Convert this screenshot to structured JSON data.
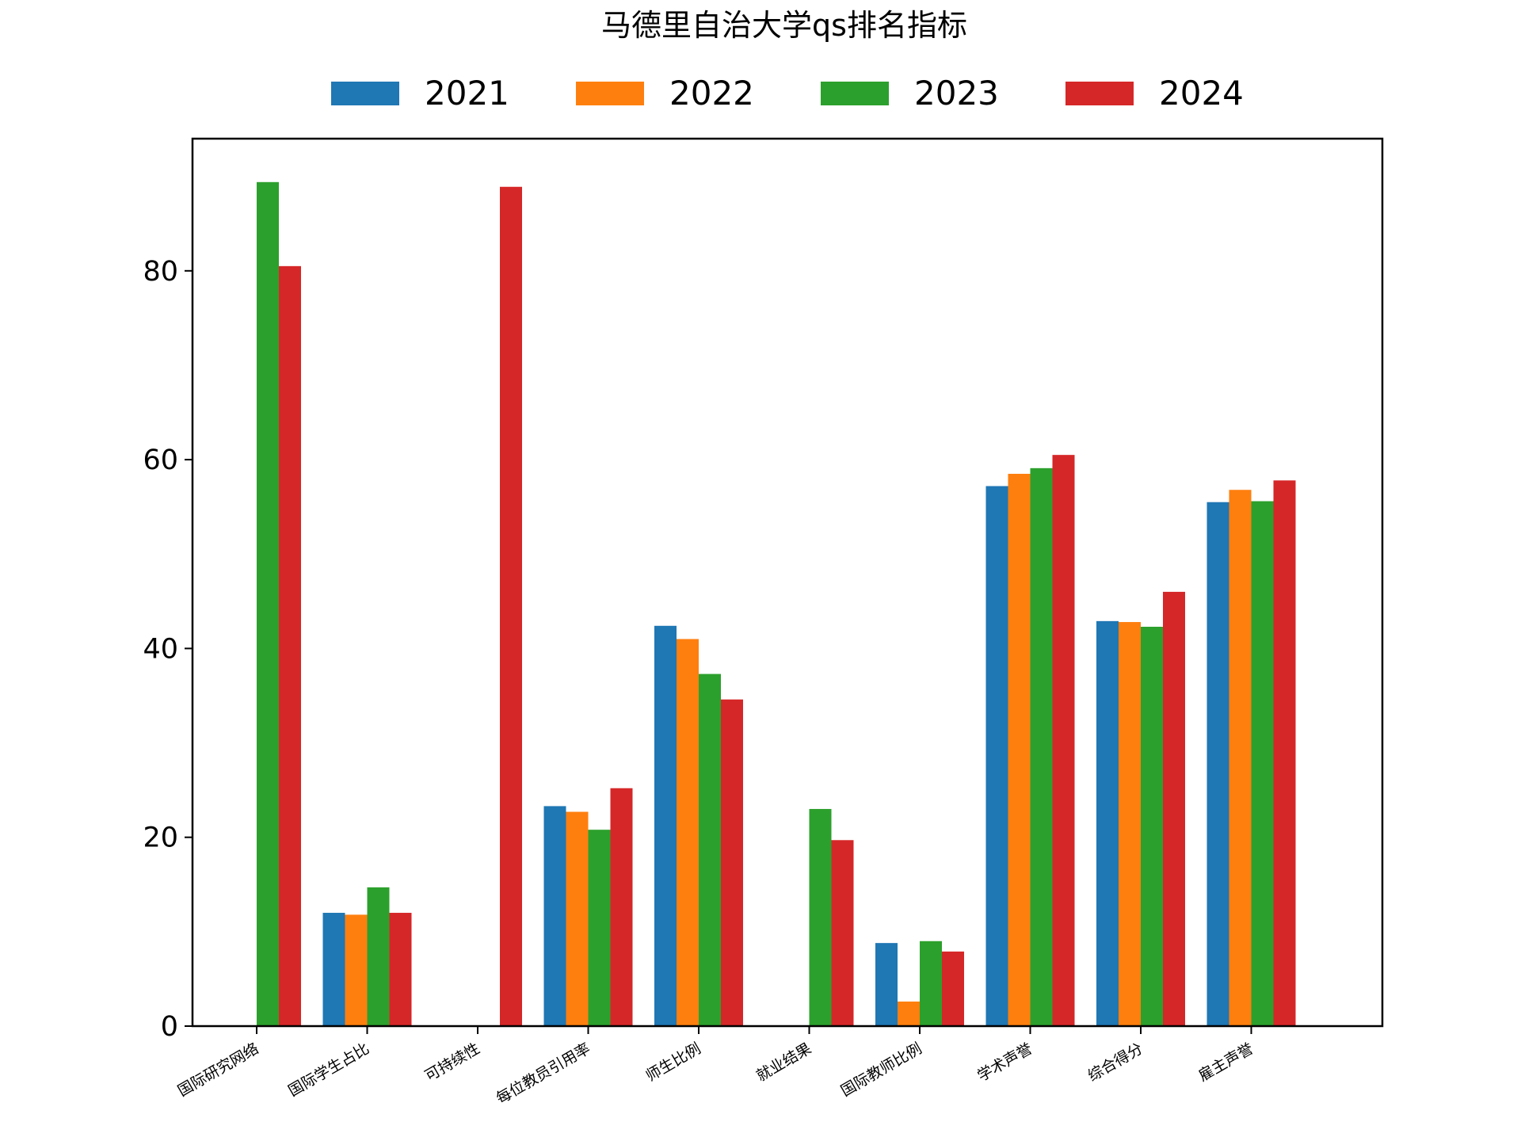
{
  "chart_data": {
    "type": "bar",
    "title": "马德里自治大学qs排名指标",
    "xlabel": "",
    "ylabel": "",
    "ylim": [
      0,
      94
    ],
    "yticks": [
      0,
      20,
      40,
      60,
      80
    ],
    "grid": false,
    "legend_position": "top-center",
    "categories": [
      "国际研究网络",
      "国际学生占比",
      "可持续性",
      "每位教员引用率",
      "师生比例",
      "就业结果",
      "国际教师比例",
      "学术声誉",
      "综合得分",
      "雇主声誉"
    ],
    "series": [
      {
        "name": "2021",
        "color": "#1f77b4",
        "values": [
          null,
          12.0,
          null,
          23.3,
          42.4,
          null,
          8.8,
          57.2,
          42.9,
          55.5
        ]
      },
      {
        "name": "2022",
        "color": "#ff7f0e",
        "values": [
          null,
          11.8,
          null,
          22.7,
          41.0,
          null,
          2.6,
          58.5,
          42.8,
          56.8
        ]
      },
      {
        "name": "2023",
        "color": "#2ca02c",
        "values": [
          89.4,
          14.7,
          null,
          20.8,
          37.3,
          23.0,
          9.0,
          59.1,
          42.3,
          55.6
        ]
      },
      {
        "name": "2024",
        "color": "#d62728",
        "values": [
          80.5,
          12.0,
          88.9,
          25.2,
          34.6,
          19.7,
          7.9,
          60.5,
          46.0,
          57.8
        ]
      }
    ]
  }
}
